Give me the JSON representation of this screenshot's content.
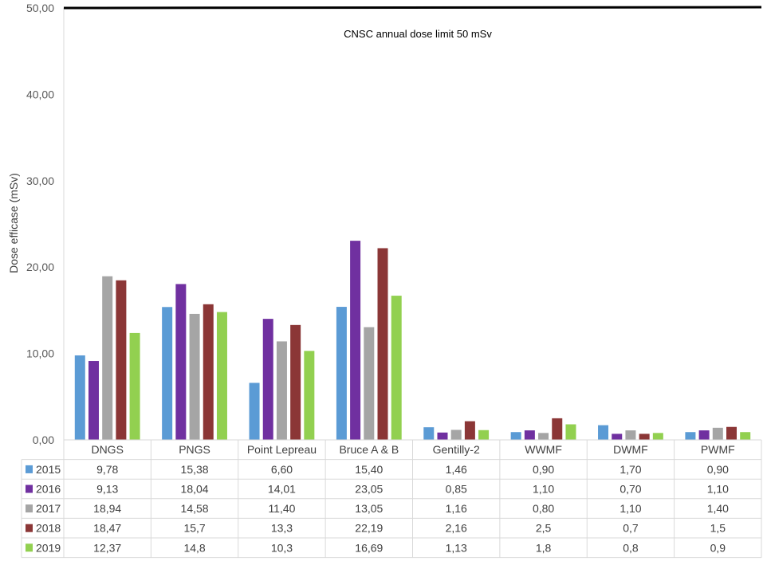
{
  "chart_data": {
    "type": "bar",
    "title": "",
    "xlabel": "",
    "ylabel": "Dose efficase (mSv)",
    "ylim": [
      0,
      50
    ],
    "yticks": [
      "0,00",
      "10,00",
      "20,00",
      "30,00",
      "40,00",
      "50,00"
    ],
    "grid": false,
    "legend": "data table, left of rows",
    "categories": [
      "DNGS",
      "PNGS",
      "Point Lepreau",
      "Bruce A & B",
      "Gentilly-2",
      "WWMF",
      "DWMF",
      "PWMF"
    ],
    "series": [
      {
        "name": "2015",
        "color": "#5b9bd5",
        "values": [
          9.78,
          15.38,
          6.6,
          15.4,
          1.46,
          0.9,
          1.7,
          0.9
        ],
        "labels": [
          "9,78",
          "15,38",
          "6,60",
          "15,40",
          "1,46",
          "0,90",
          "1,70",
          "0,90"
        ]
      },
      {
        "name": "2016",
        "color": "#7030a0",
        "values": [
          9.13,
          18.04,
          14.01,
          23.05,
          0.85,
          1.1,
          0.7,
          1.1
        ],
        "labels": [
          "9,13",
          "18,04",
          "14,01",
          "23,05",
          "0,85",
          "1,10",
          "0,70",
          "1,10"
        ]
      },
      {
        "name": "2017",
        "color": "#a5a5a5",
        "values": [
          18.94,
          14.58,
          11.4,
          13.05,
          1.16,
          0.8,
          1.1,
          1.4
        ],
        "labels": [
          "18,94",
          "14,58",
          "11,40",
          "13,05",
          "1,16",
          "0,80",
          "1,10",
          "1,40"
        ]
      },
      {
        "name": "2018",
        "color": "#8b3636",
        "values": [
          18.47,
          15.7,
          13.3,
          22.19,
          2.16,
          2.5,
          0.7,
          1.5
        ],
        "labels": [
          "18,47",
          "15,7",
          "13,3",
          "22,19",
          "2,16",
          "2,5",
          "0,7",
          "1,5"
        ]
      },
      {
        "name": "2019",
        "color": "#92d050",
        "values": [
          12.37,
          14.8,
          10.3,
          16.69,
          1.13,
          1.8,
          0.8,
          0.9
        ],
        "labels": [
          "12,37",
          "14,8",
          "10,3",
          "16,69",
          "1,13",
          "1,8",
          "0,8",
          "0,9"
        ]
      }
    ],
    "annotations": [
      {
        "type": "hline",
        "y": 50,
        "label": "CNSC annual dose limit 50 mSv",
        "color": "#000000"
      }
    ]
  }
}
